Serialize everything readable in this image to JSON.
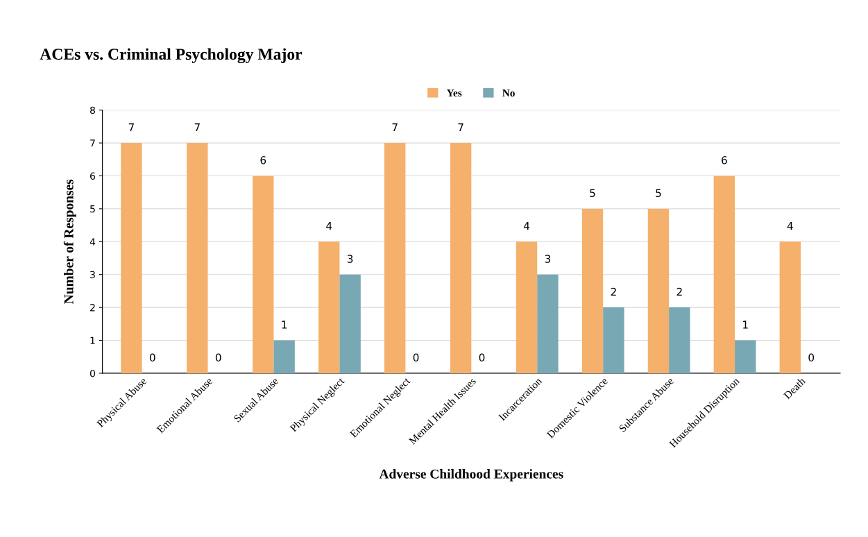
{
  "chart_data": {
    "type": "bar",
    "title": "ACEs vs. Criminal Psychology Major",
    "xlabel": "Adverse Childhood Experiences",
    "ylabel": "Number of Responses",
    "categories": [
      "Physical Abuse",
      "Emotional Abuse",
      "Sexual Abuse",
      "Physical Neglect",
      "Emotional Neglect",
      "Mental Health Issues",
      "Incarceration",
      "Domestic Violence",
      "Substance Abuse",
      "Household Disruption",
      "Death"
    ],
    "series": [
      {
        "name": "Yes",
        "color": "#f5b06b",
        "values": [
          7,
          7,
          6,
          4,
          7,
          7,
          4,
          5,
          5,
          6,
          4
        ]
      },
      {
        "name": "No",
        "color": "#78a8b4",
        "values": [
          0,
          0,
          1,
          3,
          0,
          0,
          3,
          2,
          2,
          1,
          0
        ]
      }
    ],
    "ylim": [
      0,
      8
    ],
    "yticks": [
      0,
      1,
      2,
      3,
      4,
      5,
      6,
      7,
      8
    ],
    "grid": "y",
    "legend": "top",
    "data_labels": true
  }
}
